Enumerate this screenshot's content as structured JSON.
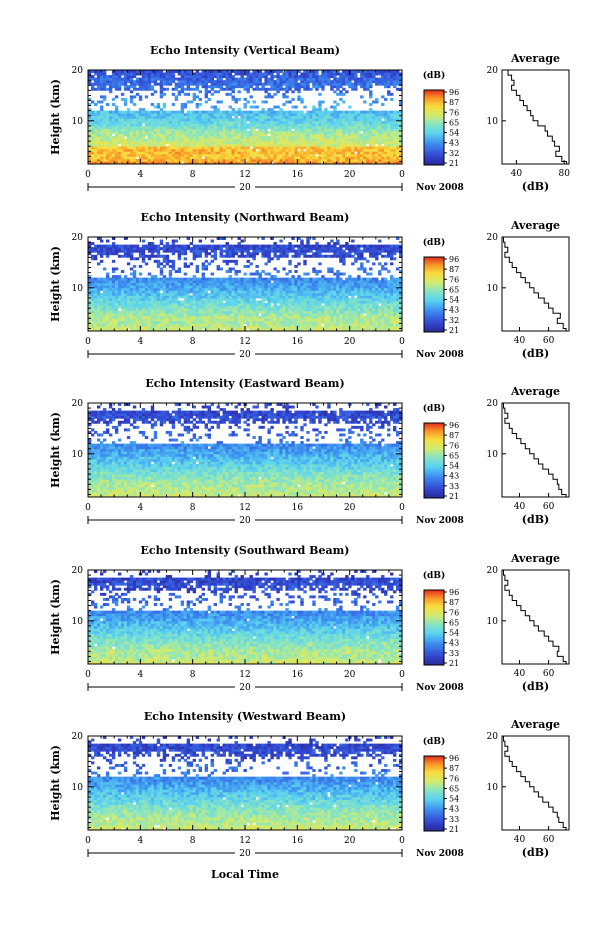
{
  "chart_data": [
    {
      "type": "heatmap",
      "title": "Echo Intensity (Vertical Beam)",
      "ylabel": "Height (km)",
      "x_ticks": [
        "0",
        "4",
        "8",
        "12",
        "16",
        "20",
        "0"
      ],
      "y_ticks": [
        "20",
        "10"
      ],
      "xlim": [
        0,
        24
      ],
      "ylim": [
        1.5,
        20
      ],
      "day_label": "20",
      "month_label": "Nov 2008",
      "colorbar": {
        "unit": "(dB)",
        "ticks": [
          "96",
          "87",
          "76",
          "65",
          "54",
          "43",
          "32",
          "21"
        ],
        "range": [
          21,
          96
        ]
      },
      "profile": {
        "title": "Average",
        "xlabel": "(dB)",
        "x_ticks": [
          "40",
          "80"
        ],
        "xlim": [
          28,
          84
        ],
        "y_ticks": [
          "20",
          "10"
        ],
        "heights": [
          1.5,
          2,
          3,
          4,
          5,
          6,
          7,
          8,
          9,
          10,
          11,
          12,
          13,
          14,
          15,
          16,
          17,
          18,
          19,
          20
        ],
        "values": [
          82,
          78,
          73,
          76,
          72,
          70,
          66,
          64,
          58,
          54,
          52,
          49,
          46,
          43,
          40,
          36,
          38,
          36,
          33,
          31
        ]
      }
    },
    {
      "type": "heatmap",
      "title": "Echo Intensity (Northward Beam)",
      "ylabel": "Height (km)",
      "x_ticks": [
        "0",
        "4",
        "8",
        "12",
        "16",
        "20",
        "0"
      ],
      "y_ticks": [
        "20",
        "10"
      ],
      "xlim": [
        0,
        24
      ],
      "ylim": [
        1.5,
        20
      ],
      "day_label": "20",
      "month_label": "Nov 2008",
      "colorbar": {
        "unit": "(dB)",
        "ticks": [
          "96",
          "87",
          "76",
          "65",
          "54",
          "43",
          "32",
          "21"
        ],
        "range": [
          21,
          96
        ]
      },
      "profile": {
        "title": "Average",
        "xlabel": "(dB)",
        "x_ticks": [
          "40",
          "60"
        ],
        "xlim": [
          28,
          74
        ],
        "y_ticks": [
          "20",
          "10"
        ],
        "heights": [
          1.5,
          2,
          3,
          4,
          5,
          6,
          7,
          8,
          9,
          10,
          11,
          12,
          13,
          14,
          15,
          16,
          17,
          18,
          19,
          20
        ],
        "values": [
          72,
          70,
          66,
          68,
          63,
          60,
          57,
          53,
          50,
          47,
          44,
          41,
          38,
          35,
          33,
          30,
          32,
          30,
          29,
          30
        ]
      }
    },
    {
      "type": "heatmap",
      "title": "Echo Intensity (Eastward Beam)",
      "ylabel": "Height (km)",
      "x_ticks": [
        "0",
        "4",
        "8",
        "12",
        "16",
        "20",
        "0"
      ],
      "y_ticks": [
        "20",
        "10"
      ],
      "xlim": [
        0,
        24
      ],
      "ylim": [
        1.5,
        20
      ],
      "day_label": "20",
      "month_label": "Nov 2008",
      "colorbar": {
        "unit": "(dB)",
        "ticks": [
          "96",
          "87",
          "76",
          "65",
          "54",
          "43",
          "33",
          "21"
        ],
        "range": [
          21,
          96
        ]
      },
      "profile": {
        "title": "Average",
        "xlabel": "(dB)",
        "x_ticks": [
          "40",
          "60"
        ],
        "xlim": [
          28,
          74
        ],
        "y_ticks": [
          "20",
          "10"
        ],
        "heights": [
          1.5,
          2,
          3,
          4,
          5,
          6,
          7,
          8,
          9,
          10,
          11,
          12,
          13,
          14,
          15,
          16,
          17,
          18,
          19,
          20
        ],
        "values": [
          72,
          69,
          67,
          66,
          63,
          60,
          56,
          53,
          50,
          47,
          44,
          41,
          38,
          35,
          33,
          30,
          32,
          30,
          29,
          30
        ]
      }
    },
    {
      "type": "heatmap",
      "title": "Echo Intensity (Southward Beam)",
      "ylabel": "Height (km)",
      "x_ticks": [
        "0",
        "4",
        "8",
        "12",
        "16",
        "20",
        "0"
      ],
      "y_ticks": [
        "20",
        "10"
      ],
      "xlim": [
        0,
        24
      ],
      "ylim": [
        1.5,
        20
      ],
      "day_label": "20",
      "month_label": "Nov 2008",
      "colorbar": {
        "unit": "(dB)",
        "ticks": [
          "96",
          "87",
          "76",
          "65",
          "54",
          "43",
          "33",
          "21"
        ],
        "range": [
          21,
          96
        ]
      },
      "profile": {
        "title": "Average",
        "xlabel": "(dB)",
        "x_ticks": [
          "40",
          "60"
        ],
        "xlim": [
          28,
          74
        ],
        "y_ticks": [
          "20",
          "10"
        ],
        "heights": [
          1.5,
          2,
          3,
          4,
          5,
          6,
          7,
          8,
          9,
          10,
          11,
          12,
          13,
          14,
          15,
          16,
          17,
          18,
          19,
          20
        ],
        "values": [
          72,
          70,
          66,
          67,
          63,
          60,
          57,
          53,
          50,
          47,
          44,
          41,
          38,
          35,
          33,
          30,
          32,
          30,
          29,
          30
        ]
      }
    },
    {
      "type": "heatmap",
      "title": "Echo Intensity (Westward Beam)",
      "ylabel": "Height (km)",
      "x_ticks": [
        "0",
        "4",
        "8",
        "12",
        "16",
        "20",
        "0"
      ],
      "y_ticks": [
        "20",
        "10"
      ],
      "xlim": [
        0,
        24
      ],
      "ylim": [
        1.5,
        20
      ],
      "day_label": "20",
      "month_label": "Nov 2008",
      "colorbar": {
        "unit": "(dB)",
        "ticks": [
          "96",
          "87",
          "76",
          "65",
          "54",
          "43",
          "33",
          "21"
        ],
        "range": [
          21,
          96
        ]
      },
      "profile": {
        "title": "Average",
        "xlabel": "(dB)",
        "x_ticks": [
          "40",
          "60"
        ],
        "xlim": [
          28,
          74
        ],
        "y_ticks": [
          "20",
          "10"
        ],
        "heights": [
          1.5,
          2,
          3,
          4,
          5,
          6,
          7,
          8,
          9,
          10,
          11,
          12,
          13,
          14,
          15,
          16,
          17,
          18,
          19,
          20
        ],
        "values": [
          72,
          70,
          67,
          66,
          63,
          60,
          56,
          53,
          50,
          47,
          44,
          41,
          38,
          35,
          33,
          30,
          32,
          30,
          29,
          30
        ]
      }
    }
  ],
  "footer": {
    "xlabel": "Local Time"
  }
}
